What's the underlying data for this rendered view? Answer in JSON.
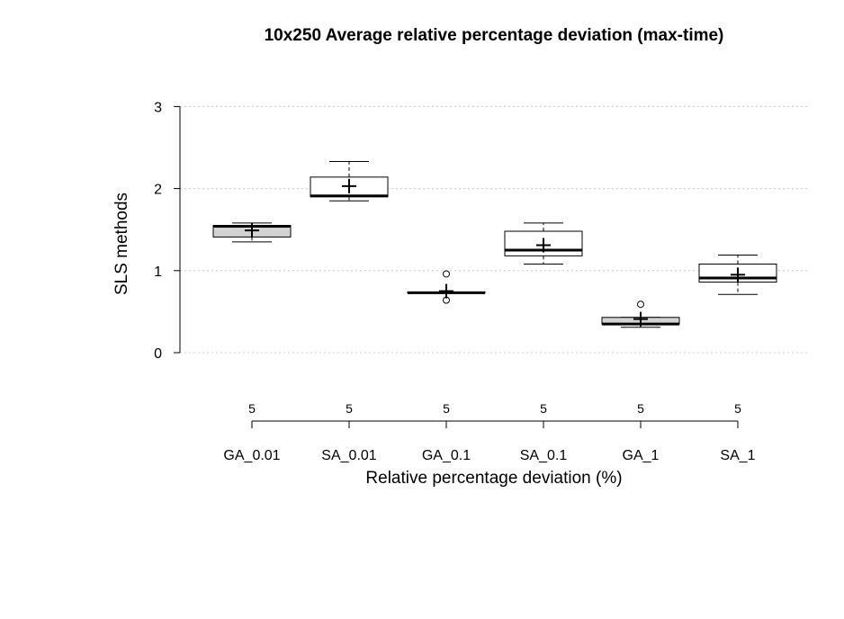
{
  "chart_data": {
    "type": "box",
    "title": "10x250 Average relative percentage deviation (max-time)",
    "xlabel": "Relative percentage deviation (%)",
    "ylabel": "SLS methods",
    "ylim": [
      0,
      3
    ],
    "yticks": [
      "0",
      "1",
      "2",
      "3"
    ],
    "grid": true,
    "categories": [
      "GA_0.01",
      "SA_0.01",
      "GA_0.1",
      "SA_0.1",
      "GA_1",
      "SA_1"
    ],
    "counts": [
      "5",
      "5",
      "5",
      "5",
      "5",
      "5"
    ],
    "fills": [
      "#d3d3d3",
      "#ffffff",
      "#d3d3d3",
      "#ffffff",
      "#d3d3d3",
      "#ffffff"
    ],
    "boxes": [
      {
        "whisker_low": 1.35,
        "q1": 1.41,
        "median": 1.54,
        "q3": 1.55,
        "whisker_high": 1.58,
        "mean": 1.49,
        "outliers": []
      },
      {
        "whisker_low": 1.85,
        "q1": 1.9,
        "median": 1.91,
        "q3": 2.14,
        "whisker_high": 2.33,
        "mean": 2.03,
        "outliers": []
      },
      {
        "whisker_low": 0.73,
        "q1": 0.73,
        "median": 0.73,
        "q3": 0.74,
        "whisker_high": 0.74,
        "mean": 0.75,
        "outliers": [
          0.64,
          0.96
        ]
      },
      {
        "whisker_low": 1.08,
        "q1": 1.18,
        "median": 1.25,
        "q3": 1.48,
        "whisker_high": 1.58,
        "mean": 1.31,
        "outliers": []
      },
      {
        "whisker_low": 0.31,
        "q1": 0.35,
        "median": 0.35,
        "q3": 0.43,
        "whisker_high": 0.43,
        "mean": 0.41,
        "outliers": [
          0.59
        ]
      },
      {
        "whisker_low": 0.71,
        "q1": 0.86,
        "median": 0.91,
        "q3": 1.08,
        "whisker_high": 1.19,
        "mean": 0.95,
        "outliers": []
      }
    ]
  }
}
